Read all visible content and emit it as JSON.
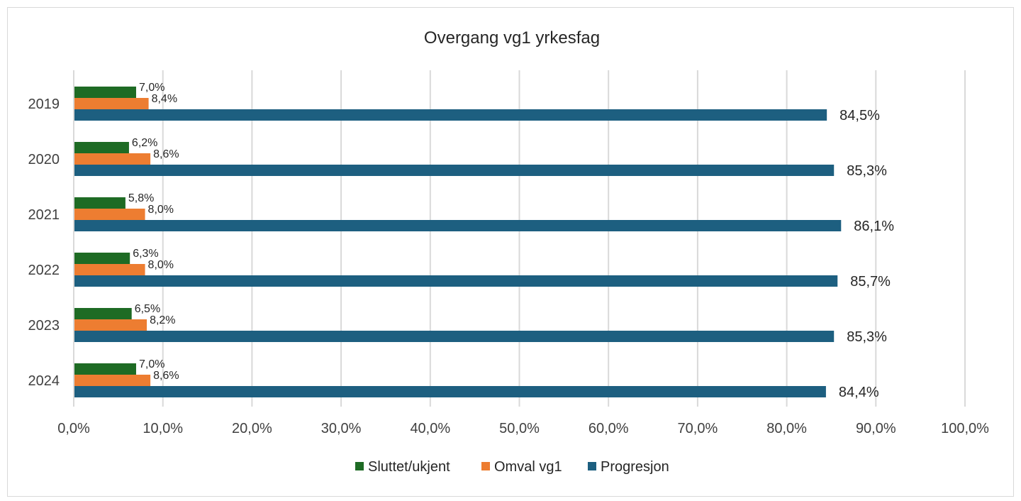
{
  "chart_data": {
    "type": "bar",
    "orientation": "horizontal",
    "title": "Overgang vg1 yrkesfag",
    "categories": [
      "2019",
      "2020",
      "2021",
      "2022",
      "2023",
      "2024"
    ],
    "series": [
      {
        "name": "Sluttet/ukjent",
        "color": "#1e6b24",
        "values": [
          7.0,
          6.2,
          5.8,
          6.3,
          6.5,
          7.0
        ],
        "labels": [
          "7,0%",
          "6,2%",
          "5,8%",
          "6,3%",
          "6,5%",
          "7,0%"
        ]
      },
      {
        "name": "Omval vg1",
        "color": "#ed7d31",
        "values": [
          8.4,
          8.6,
          8.0,
          8.0,
          8.2,
          8.6
        ],
        "labels": [
          "8,4%",
          "8,6%",
          "8,0%",
          "8,0%",
          "8,2%",
          "8,6%"
        ]
      },
      {
        "name": "Progresjon",
        "color": "#1d5f80",
        "values": [
          84.5,
          85.3,
          86.1,
          85.7,
          85.3,
          84.4
        ],
        "labels": [
          "84,5%",
          "85,3%",
          "86,1%",
          "85,7%",
          "85,3%",
          "84,4%"
        ]
      }
    ],
    "xlim": [
      0,
      100
    ],
    "xticks": [
      0,
      10,
      20,
      30,
      40,
      50,
      60,
      70,
      80,
      90,
      100
    ],
    "xtick_labels": [
      "0,0%",
      "10,0%",
      "20,0%",
      "30,0%",
      "40,0%",
      "50,0%",
      "60,0%",
      "70,0%",
      "80,0%",
      "90,0%",
      "100,0%"
    ],
    "grid": "vertical",
    "grid_color": "#d9d9d9",
    "legend_position": "bottom"
  }
}
